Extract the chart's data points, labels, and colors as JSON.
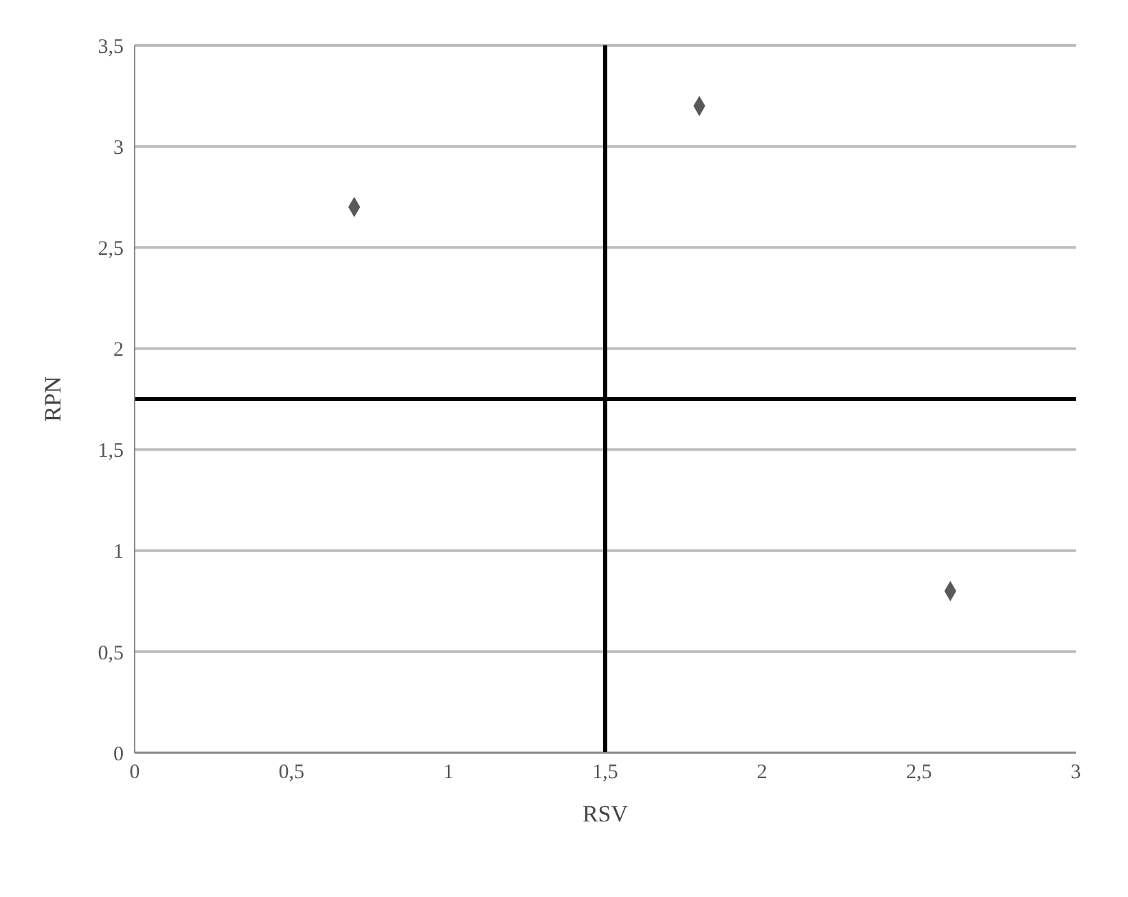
{
  "chart_data": {
    "type": "scatter",
    "xlabel": "RSV",
    "ylabel": "RPN",
    "x": [
      0.7,
      1.8,
      2.6
    ],
    "values": [
      2.7,
      3.2,
      0.8
    ],
    "color": "#595959",
    "marker": "diamond",
    "xlim": [
      0,
      3
    ],
    "xticks": [
      0,
      {
        "value": 0.5,
        "label": "0,5"
      },
      1,
      {
        "value": 1.5,
        "label": "1,5"
      },
      2,
      {
        "value": 2.5,
        "label": "2,5"
      },
      3
    ],
    "ylim": [
      0,
      3.5
    ],
    "yticks": [
      0,
      {
        "value": 0.5,
        "label": "0,5"
      },
      1,
      {
        "value": 1.5,
        "label": "1,5"
      },
      2,
      {
        "value": 2.5,
        "label": "2,5"
      },
      3,
      {
        "value": 3.5,
        "label": "3,5"
      }
    ],
    "ref_lines": [
      {
        "axis": "x",
        "value": 1.5,
        "color": "#000000"
      },
      {
        "axis": "y",
        "value": 1.75,
        "color": "#000000"
      }
    ],
    "grid": "y"
  }
}
